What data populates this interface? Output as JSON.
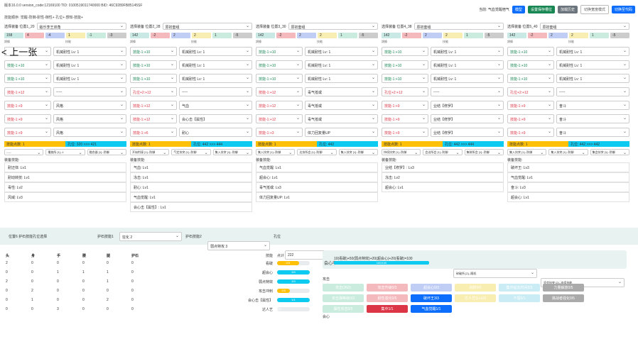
{
  "top": {
    "version": "版本16.0.0 version_code:12169100 TID: 0100519011740000 BID: 46C9289FB85145SF",
    "order": "技能顺序: 觉醒-防御-耐性-御性+ 孔位+ 感知-技能+",
    "current": "当前: 气血觉醒宿气",
    "mode": "模型",
    "btn1": "设置保存槽位",
    "btn2": "加载历史",
    "btn3": "切换宽度模式",
    "btn4": "切换至代码"
  },
  "back": "< 上一张",
  "columns": [
    {
      "head": "选择装备 位置1_20",
      "sel": "敌乐李王双角",
      "chips": [
        "158",
        "4",
        "-4",
        "1",
        "-1",
        "-3"
      ],
      "rows": [
        [
          "",
          "机械耐性 Lv: 1"
        ],
        [
          "技能-1:+10",
          "机械耐性 Lv: 1"
        ],
        [
          "技能-1:+10",
          "机械耐性 Lv: 1"
        ],
        [
          "技能-1:+12",
          "-----"
        ],
        [
          "技能-1:+9",
          "风格"
        ],
        [
          "技能-1:+9",
          "风格"
        ],
        [
          "技能-1:+9",
          "风格"
        ]
      ],
      "lvl": [
        "技能点数: 1",
        "孔位: 320 >>> 421"
      ],
      "sub": [
        "-----",
        "播放所 [1]--1",
        "融合器 [1]--防御"
      ],
      "skills": [
        "耐迂体: Lv1",
        "耐动转技: Lv1",
        "毒性: Lv2",
        "风域: Lv3"
      ]
    },
    {
      "head": "选择装备 位置2_28",
      "sel": "原初套组",
      "chips": [
        "142",
        "-2",
        "2",
        "2",
        "1",
        "-5"
      ],
      "rows": [
        [
          "技能-1:+10",
          "机械耐性 Lv: 1"
        ],
        [
          "技能-1:+10",
          "机械耐性 Lv: 1"
        ],
        [
          "技能-1:+10",
          "机械耐性 Lv: 1"
        ],
        [
          "孔位+2:+12",
          "-----"
        ],
        [
          "技能-1:+12",
          "气血"
        ],
        [
          "技能-1:+12",
          "会心击【属性】"
        ],
        [
          "技能-1:+6",
          "耐心"
        ]
      ],
      "lvl": [
        "技能点数: 1",
        "孔位: 442 >>> 444"
      ],
      "sub": [
        "开始衔接 [1]--防御",
        "气定技突 [1]--防御",
        "集入技突 [1]--防御"
      ],
      "skills": [
        "气血: Lv1",
        "冻击: Lv1",
        "耐心: Lv1",
        "气血觉醒: Lv1",
        "会心击【属性】: Lv1"
      ]
    },
    {
      "head": "选择装备 位置3_30",
      "sel": "原初套组",
      "chips": [
        "142",
        "-2",
        "2",
        "2",
        "1",
        "-5"
      ],
      "rows": [
        [
          "技能-1:+10",
          "机械耐性 Lv: 1"
        ],
        [
          "技能-1:+10",
          "机械耐性 Lv: 1"
        ],
        [
          "技能-1:+10",
          "机械耐性 Lv: 1"
        ],
        [
          "技能-1:+12",
          "毒气抵或"
        ],
        [
          "技能-1:+12",
          "毒气抵或"
        ],
        [
          "技能-1:+12",
          "毒气抵或"
        ],
        [
          "技能-1:+3",
          "体力回复量UP"
        ]
      ],
      "lvl": [
        "技能点数: 1",
        "孔位: 442"
      ],
      "sub": [
        "集入技突 [1]--防御",
        "达技所会 [1]--防御",
        "集入技突 [1]--防御"
      ],
      "skills": [
        "气血觉醒: Lv1",
        "超会心: Lv1",
        "毒气抵或: Lv3",
        "体力回复量UP: Lv1"
      ]
    },
    {
      "head": "选择装备 位置4_38",
      "sel": "原初套组",
      "chips": [
        "142",
        "-2",
        "2",
        "2",
        "1",
        "-5"
      ],
      "rows": [
        [
          "技能-1:+10",
          "机械耐性 Lv: 1"
        ],
        [
          "技能-1:+10",
          "机械耐性 Lv: 1"
        ],
        [
          "技能-1:+10",
          "机械耐性 Lv: 1"
        ],
        [
          "孔位+2:+12",
          "-----"
        ],
        [
          "技能-1:+9",
          "业结【修罗】"
        ],
        [
          "技能-1:+9",
          "业结【修罗】"
        ],
        [
          "技能-1:+9",
          "业结【修罗】"
        ]
      ],
      "lvl": [
        "技能点数: 1",
        "孔位: 442 >>> 444"
      ],
      "sub": [
        "持续技突 [1]--防御",
        "会议所会 [1]--防御",
        "集装所会 [1]--防御"
      ],
      "skills": [
        "业结【修罗】: Lv3",
        "冻击: Lv2",
        "超会心: Lv1"
      ]
    },
    {
      "head": "选择装备 位置5_40",
      "sel": "原初套组",
      "chips": [
        "142",
        "-2",
        "2",
        "2",
        "1",
        "-5"
      ],
      "rows": [
        [
          "技能-1:+10",
          "机械耐性 Lv: 1"
        ],
        [
          "技能-1:+10",
          "机械耐性 Lv: 1"
        ],
        [
          "技能-1:+10",
          "机械耐性 Lv: 1"
        ],
        [
          "孔位+2:+12",
          "-----"
        ],
        [
          "技能-1:+9",
          "奋斗"
        ],
        [
          "技能-1:+9",
          "奋斗"
        ],
        [
          "技能-1:+9",
          "奋斗"
        ]
      ],
      "lvl": [
        "技能点数: 1",
        "孔位: 442 >>> 442"
      ],
      "sub": [
        "集入技突 [1]--防御",
        "集入技突 [1]--防御",
        "集会技突 [1]--防御"
      ],
      "skills": [
        "破坏王: Lv3",
        "气血觉醒: Lv1",
        "奋斗: Lv3",
        "超会心: Lv1"
      ]
    }
  ],
  "bottom": {
    "pos": "位置6 护石技能孔位选择",
    "l1": "护石技能1",
    "v1": "狂化 2",
    "l2": "护石技能2",
    "v2": "弱点特攻 3",
    "l3": "孔位",
    "v3": "222",
    "s1": "整合所 [2]--随机",
    "s2": "碎破所 [2]--随机",
    "s3": "坚会技突 [2]--连续技能"
  },
  "table": {
    "hdr": [
      "头",
      "身",
      "手",
      "腰",
      "腿",
      "护石"
    ],
    "rows": [
      [
        "2",
        "0",
        "0",
        "0",
        "0",
        "0"
      ],
      [
        "0",
        "0",
        "1",
        "1",
        "1",
        "0"
      ],
      [
        "2",
        "0",
        "0",
        "0",
        "1",
        "0"
      ],
      [
        "0",
        "2",
        "0",
        "0",
        "0",
        "0"
      ],
      [
        "0",
        "1",
        "0",
        "0",
        "2",
        "0"
      ],
      [
        "0",
        "0",
        "3",
        "0",
        "0",
        "0"
      ]
    ],
    "skhdr": [
      "技能",
      "点计"
    ],
    "skills": [
      [
        "看破",
        "2/3"
      ],
      [
        "超会心",
        "3/3"
      ],
      [
        "弱点特效",
        "3/3"
      ],
      [
        "攻击冲刺",
        "2/5"
      ],
      [
        "会心击【属性】",
        "1/1"
      ],
      [
        "达人艺",
        "0/3"
      ]
    ]
  },
  "calc": {
    "formula": "10(看破)+50(弱点特效)+20(超会心)+20(看破)=100",
    "label": "会心率",
    "bar": "100/100"
  },
  "grid": {
    "title": "攻击",
    "items": [
      "攻击ON/3",
      "攻击升级0/3",
      "超会心0/3",
      "剑技0/3",
      "集中延长时间0/3",
      "力量解放0/5",
      "攻击弹等级0/3",
      "耐性强化0/5",
      "破坏王3/3",
      "达人艺1Lv1/3",
      "不屈0/1",
      "挑战者强化0/5",
      "属性攻击0/3",
      "集中1/1",
      "气血觉醒1/1"
    ],
    "foot": "会心"
  }
}
